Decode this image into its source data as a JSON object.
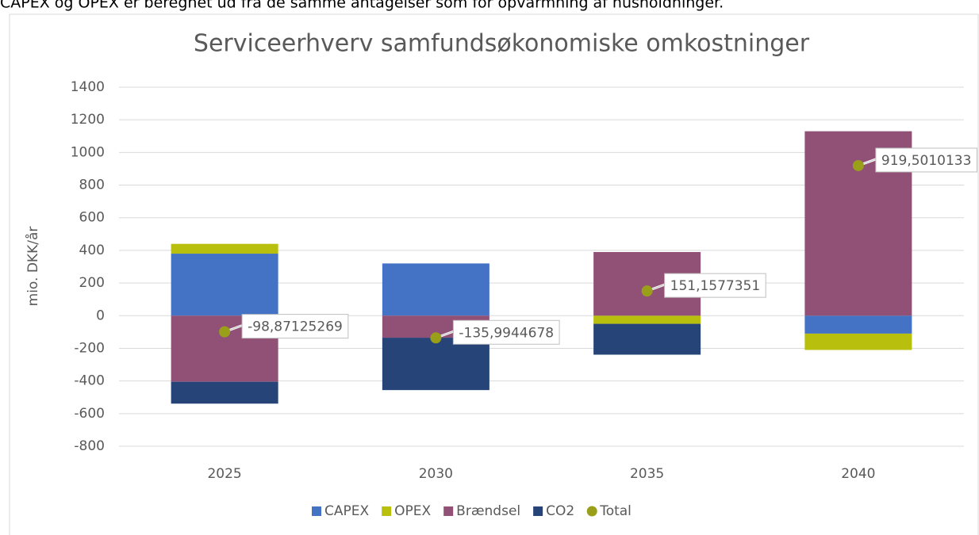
{
  "header_text": "CAPEX og OPEX er beregnet ud fra de samme antagelser som for opvarmning af husholdninger.",
  "chart_data": {
    "type": "stacked_bar",
    "title": "Serviceerhverv samfundsøkonomiske omkostninger",
    "ylabel": "mio. DKK/år",
    "categories": [
      "2025",
      "2030",
      "2035",
      "2040"
    ],
    "series": [
      {
        "name": "CAPEX",
        "color": "#4472c4",
        "values": [
          380,
          320,
          0,
          -110
        ]
      },
      {
        "name": "OPEX",
        "color": "#b8bf0d",
        "values": [
          60,
          0,
          -50,
          -100
        ]
      },
      {
        "name": "Brændsel",
        "color": "#915177",
        "values": [
          -405,
          -135,
          390,
          1130
        ]
      },
      {
        "name": "CO2",
        "color": "#264478",
        "values": [
          -134,
          -321,
          -189,
          0
        ]
      },
      {
        "name": "Total",
        "color": "#9a9f1a",
        "type": "scatter",
        "values": [
          -98.87125269,
          -135.9944678,
          151.1577351,
          919.5010133
        ],
        "value_labels": [
          "-98,87125269",
          "-135,9944678",
          "151,1577351",
          "919,5010133"
        ]
      }
    ],
    "ylim": [
      -800,
      1400
    ],
    "yticks": [
      -800,
      -600,
      -400,
      -200,
      0,
      200,
      400,
      600,
      800,
      1000,
      1200,
      1400
    ],
    "grid": true,
    "legend": "bottom"
  }
}
